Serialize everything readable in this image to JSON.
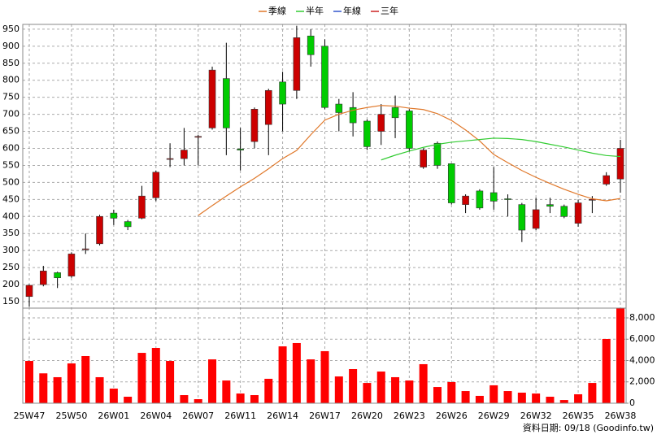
{
  "chart_data": {
    "type": "candlestick",
    "categories": [
      "25W47",
      null,
      null,
      "25W50",
      null,
      null,
      "26W01",
      null,
      null,
      "26W04",
      null,
      null,
      "26W07",
      null,
      null,
      "26W11",
      null,
      null,
      "26W14",
      null,
      null,
      "26W17",
      null,
      null,
      "26W20",
      null,
      null,
      "26W23",
      null,
      null,
      "26W26",
      null,
      null,
      "26W29",
      null,
      null,
      "26W32",
      null,
      null,
      "26W35",
      null,
      null,
      "26W38"
    ],
    "open": [
      165,
      200,
      235,
      225,
      303,
      320,
      410,
      385,
      395,
      455,
      568,
      570,
      633,
      660,
      805,
      598,
      620,
      670,
      795,
      770,
      930,
      900,
      730,
      720,
      680,
      650,
      720,
      710,
      545,
      615,
      555,
      435,
      475,
      470,
      452,
      435,
      365,
      435,
      430,
      380,
      448,
      495,
      510
    ],
    "high": [
      200,
      255,
      238,
      295,
      350,
      405,
      420,
      390,
      490,
      535,
      615,
      660,
      640,
      840,
      910,
      660,
      720,
      775,
      825,
      960,
      950,
      920,
      745,
      765,
      685,
      730,
      755,
      715,
      600,
      620,
      555,
      465,
      480,
      545,
      465,
      440,
      455,
      455,
      435,
      450,
      460,
      530,
      625
    ],
    "low": [
      135,
      195,
      190,
      220,
      290,
      315,
      375,
      360,
      392,
      445,
      545,
      550,
      550,
      655,
      580,
      535,
      600,
      580,
      650,
      745,
      840,
      715,
      650,
      635,
      595,
      610,
      630,
      590,
      540,
      540,
      435,
      410,
      420,
      420,
      400,
      325,
      360,
      410,
      395,
      370,
      410,
      490,
      470
    ],
    "close": [
      198,
      240,
      220,
      290,
      305,
      400,
      395,
      370,
      460,
      530,
      570,
      595,
      635,
      830,
      660,
      595,
      715,
      770,
      730,
      925,
      875,
      720,
      705,
      675,
      605,
      700,
      690,
      600,
      595,
      550,
      440,
      460,
      425,
      445,
      450,
      360,
      420,
      430,
      400,
      440,
      450,
      520,
      600
    ],
    "up_color": "#cc0000",
    "down_color": "#00cc00",
    "series": [
      {
        "name": "季線",
        "color": "#e0782a",
        "values": [
          null,
          null,
          null,
          null,
          null,
          null,
          null,
          null,
          null,
          null,
          null,
          null,
          403,
          432,
          460,
          487,
          512,
          540,
          570,
          594,
          640,
          683,
          700,
          712,
          720,
          726,
          724,
          718,
          714,
          702,
          682,
          654,
          622,
          582,
          558,
          535,
          515,
          497,
          480,
          465,
          452,
          446,
          453
        ]
      },
      {
        "name": "半年",
        "color": "#33cc33",
        "values": [
          null,
          null,
          null,
          null,
          null,
          null,
          null,
          null,
          null,
          null,
          null,
          null,
          null,
          null,
          null,
          null,
          null,
          null,
          null,
          null,
          null,
          null,
          null,
          null,
          null,
          566,
          580,
          592,
          603,
          612,
          618,
          622,
          626,
          630,
          629,
          626,
          620,
          612,
          604,
          595,
          586,
          579,
          576
        ]
      },
      {
        "name": "年線",
        "color": "#3355cc",
        "values": [
          null,
          null,
          null,
          null,
          null,
          null,
          null,
          null,
          null,
          null,
          null,
          null,
          null,
          null,
          null,
          null,
          null,
          null,
          null,
          null,
          null,
          null,
          null,
          null,
          null,
          null,
          null,
          null,
          null,
          null,
          null,
          null,
          null,
          null,
          null,
          null,
          null,
          null,
          null,
          null,
          null,
          null,
          null
        ]
      },
      {
        "name": "三年",
        "color": "#cc2222",
        "values": [
          null,
          null,
          null,
          null,
          null,
          null,
          null,
          null,
          null,
          null,
          null,
          null,
          null,
          null,
          null,
          null,
          null,
          null,
          null,
          null,
          null,
          null,
          null,
          null,
          null,
          null,
          null,
          null,
          null,
          null,
          null,
          null,
          null,
          null,
          null,
          null,
          null,
          null,
          null,
          null,
          null,
          null,
          null
        ]
      }
    ],
    "volume": {
      "axis": "y2",
      "color": "#ff0000",
      "values": [
        3960,
        2800,
        2440,
        3730,
        4420,
        2440,
        1370,
        610,
        4720,
        5180,
        3960,
        760,
        380,
        4110,
        2130,
        910,
        760,
        2290,
        5330,
        5640,
        4110,
        4880,
        2510,
        3200,
        1900,
        2970,
        2440,
        2130,
        3660,
        1520,
        1980,
        1140,
        690,
        1680,
        1140,
        990,
        910,
        610,
        300,
        840,
        1900,
        6020,
        8910
      ]
    },
    "ylim": [
      131,
      964
    ],
    "yticks": [
      150,
      200,
      250,
      300,
      350,
      400,
      450,
      500,
      550,
      600,
      650,
      700,
      750,
      800,
      850,
      900,
      950
    ],
    "y2lim": [
      0,
      8914
    ],
    "y2ticks": [
      0,
      {
        "value": 2000,
        "label": "2,000"
      },
      {
        "value": 4000,
        "label": "4,000"
      },
      {
        "value": 6000,
        "label": "6,000"
      },
      {
        "value": 8000,
        "label": "8,000"
      }
    ],
    "grid": true,
    "footnote": "資料日期: 09/18  (Goodinfo.tw)"
  }
}
